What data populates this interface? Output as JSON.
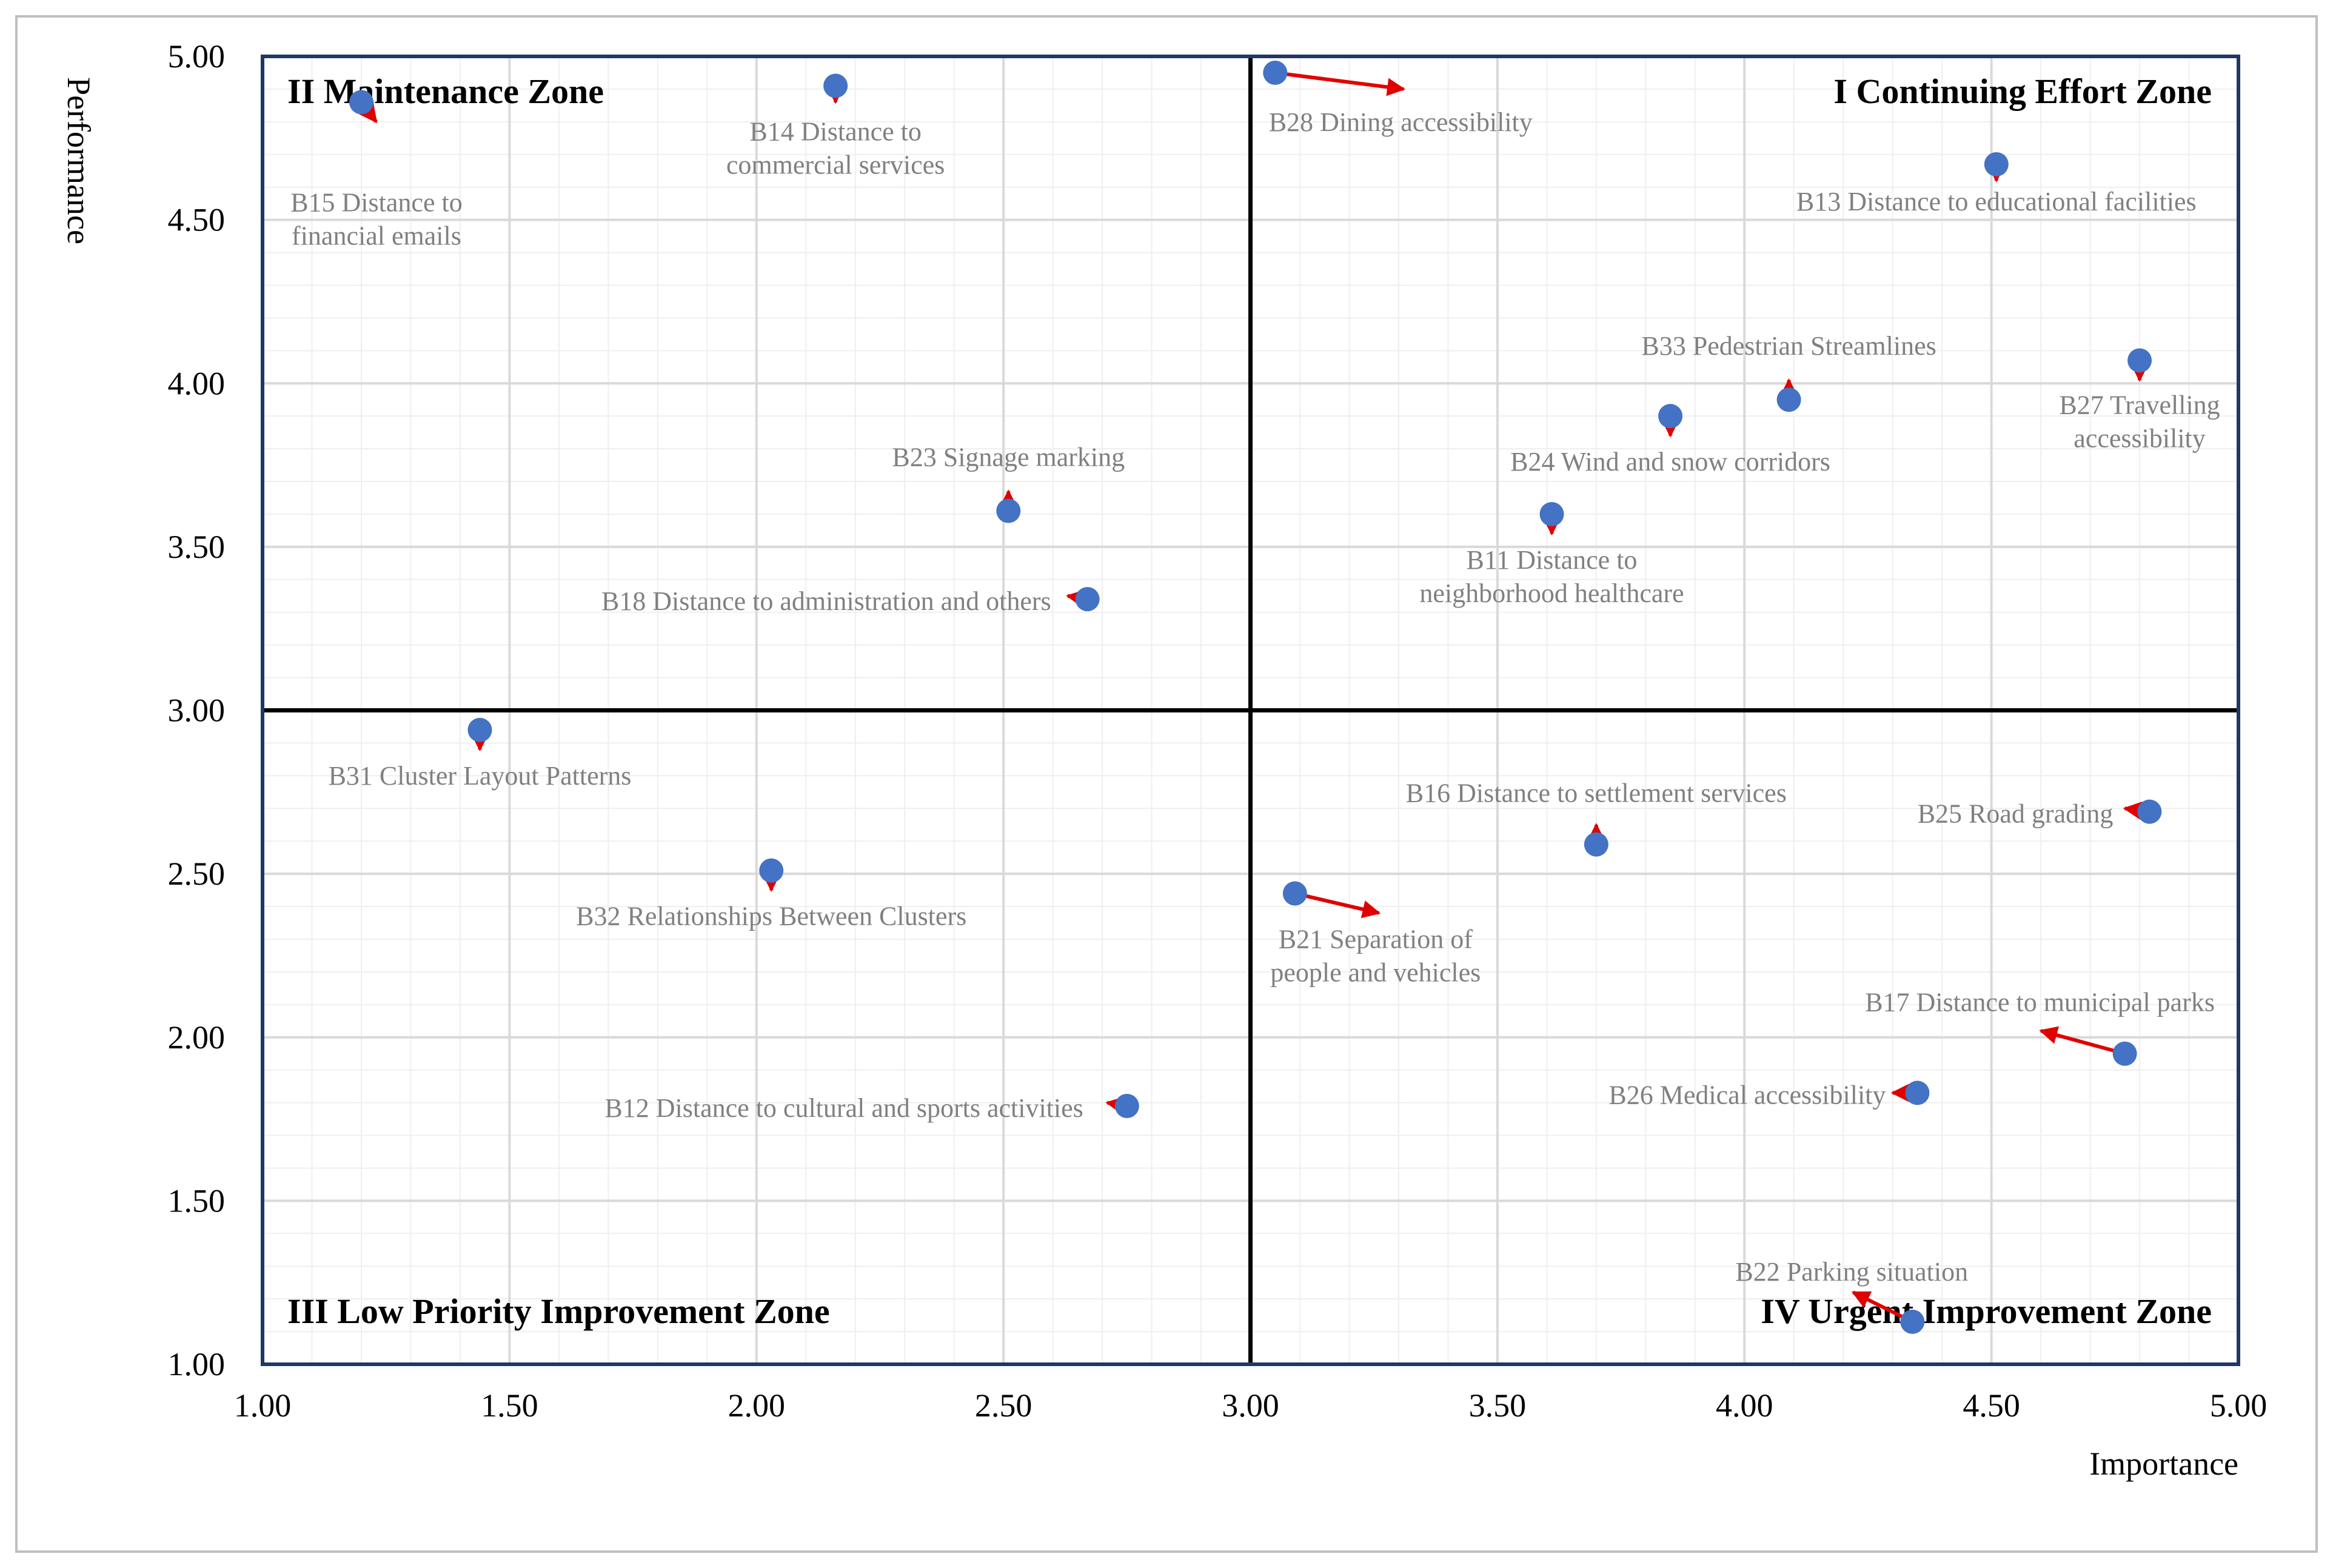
{
  "chart_data": {
    "type": "scatter",
    "title": "",
    "xlabel": "Importance",
    "ylabel": "Performance",
    "xlim": [
      1.0,
      5.0
    ],
    "ylim": [
      1.0,
      5.0
    ],
    "x_ticks": [
      "1.00",
      "1.50",
      "2.00",
      "2.50",
      "3.00",
      "3.50",
      "4.00",
      "4.50",
      "5.00"
    ],
    "y_ticks": [
      "1.00",
      "1.50",
      "2.00",
      "2.50",
      "3.00",
      "3.50",
      "4.00",
      "4.50",
      "5.00"
    ],
    "divider": {
      "x": 3.0,
      "y": 3.0
    },
    "grid": true,
    "zones": [
      {
        "label": "I Continuing  Effort Zone",
        "position": "top-right"
      },
      {
        "label": "II Maintenance Zone",
        "position": "top-left"
      },
      {
        "label": "III Low Priority  Improvement  Zone",
        "position": "bottom-left"
      },
      {
        "label": "IV Urgent Improvement Zone",
        "position": "bottom-right"
      }
    ],
    "colors": {
      "point": "#4472C4",
      "arrow": "#E00000",
      "divider": "#000000",
      "frame": "#1F3864",
      "label": "#808080",
      "zone_label": "#000000"
    },
    "points": [
      {
        "id": "B15",
        "label": [
          "B15 Distance to",
          "financial emails"
        ],
        "x": 1.2,
        "y": 4.86,
        "arrow_to": [
          1.23,
          4.8
        ]
      },
      {
        "id": "B14",
        "label": [
          "B14 Distance to",
          "commercial services"
        ],
        "x": 2.16,
        "y": 4.91,
        "arrow_to": [
          2.16,
          4.86
        ]
      },
      {
        "id": "B28",
        "label": [
          "B28 Dining accessibility"
        ],
        "x": 3.05,
        "y": 4.95,
        "arrow_to": [
          3.31,
          4.9
        ]
      },
      {
        "id": "B13",
        "label": [
          "B13 Distance to educational facilities"
        ],
        "x": 4.51,
        "y": 4.67,
        "arrow_to": [
          4.51,
          4.62
        ]
      },
      {
        "id": "B33",
        "label": [
          "B33 Pedestrian Streamlines"
        ],
        "x": 4.09,
        "y": 3.95,
        "arrow_to": [
          4.09,
          4.01
        ]
      },
      {
        "id": "B27",
        "label": [
          "B27 Travelling",
          "accessibility"
        ],
        "x": 4.8,
        "y": 4.07,
        "arrow_to": [
          4.8,
          4.01
        ]
      },
      {
        "id": "B24",
        "label": [
          "B24 Wind and snow corridors"
        ],
        "x": 3.85,
        "y": 3.9,
        "arrow_to": [
          3.85,
          3.84
        ]
      },
      {
        "id": "B23",
        "label": [
          "B23 Signage marking"
        ],
        "x": 2.51,
        "y": 3.61,
        "arrow_to": [
          2.51,
          3.67
        ]
      },
      {
        "id": "B11",
        "label": [
          "B11 Distance to",
          "neighborhood healthcare"
        ],
        "x": 3.61,
        "y": 3.6,
        "arrow_to": [
          3.61,
          3.54
        ]
      },
      {
        "id": "B18",
        "label": [
          "B18 Distance to administration and others"
        ],
        "x": 2.67,
        "y": 3.34,
        "arrow_to": [
          2.63,
          3.35
        ]
      },
      {
        "id": "B31",
        "label": [
          "B31 Cluster Layout Patterns"
        ],
        "x": 1.44,
        "y": 2.94,
        "arrow_to": [
          1.44,
          2.88
        ]
      },
      {
        "id": "B16",
        "label": [
          "B16 Distance to settlement services"
        ],
        "x": 3.7,
        "y": 2.59,
        "arrow_to": [
          3.7,
          2.65
        ]
      },
      {
        "id": "B25",
        "label": [
          "B25 Road grading"
        ],
        "x": 4.82,
        "y": 2.69,
        "arrow_to": [
          4.77,
          2.7
        ]
      },
      {
        "id": "B32",
        "label": [
          "B32 Relationships Between Clusters"
        ],
        "x": 2.03,
        "y": 2.51,
        "arrow_to": [
          2.03,
          2.45
        ]
      },
      {
        "id": "B21",
        "label": [
          "B21 Separation of",
          "people and vehicles"
        ],
        "x": 3.09,
        "y": 2.44,
        "arrow_to": [
          3.26,
          2.38
        ]
      },
      {
        "id": "B17",
        "label": [
          "B17 Distance to municipal parks"
        ],
        "x": 4.77,
        "y": 1.95,
        "arrow_to": [
          4.6,
          2.02
        ]
      },
      {
        "id": "B26",
        "label": [
          "B26 Medical accessibility"
        ],
        "x": 4.35,
        "y": 1.83,
        "arrow_to": [
          4.3,
          1.83
        ]
      },
      {
        "id": "B12",
        "label": [
          "B12 Distance to cultural and sports activities"
        ],
        "x": 2.75,
        "y": 1.79,
        "arrow_to": [
          2.71,
          1.8
        ]
      },
      {
        "id": "B22",
        "label": [
          "B22 Parking situation"
        ],
        "x": 4.34,
        "y": 1.13,
        "arrow_to": [
          4.22,
          1.22
        ]
      }
    ]
  }
}
